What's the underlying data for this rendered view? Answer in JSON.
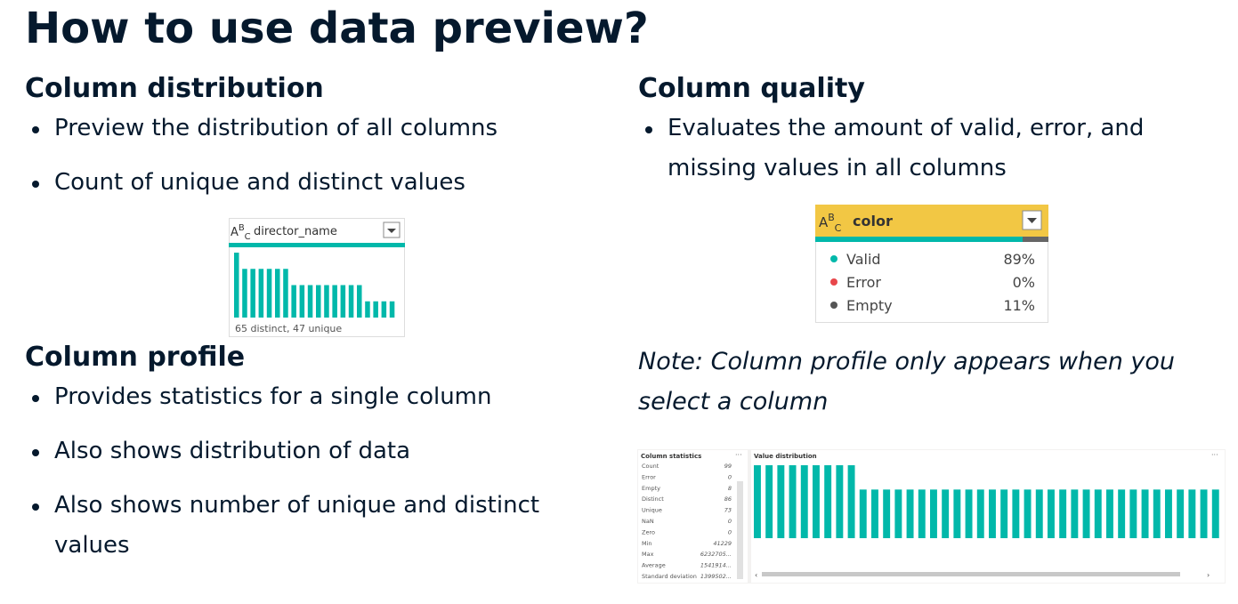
{
  "title": "How to use data preview?",
  "column_distribution": {
    "heading": "Column distribution",
    "bullets": [
      "Preview the distribution of all columns",
      "Count of unique and distinct values"
    ],
    "widget": {
      "column": "director_name",
      "bars": [
        4,
        3,
        3,
        3,
        3,
        3,
        3,
        2,
        2,
        2,
        2,
        2,
        2,
        2,
        2,
        2,
        1,
        1,
        1,
        1
      ],
      "footer": "65 distinct, 47 unique"
    }
  },
  "column_quality": {
    "heading": "Column quality",
    "bullets": [
      "Evaluates the amount of valid, error, and missing values in all columns"
    ],
    "widget": {
      "column": "color",
      "rows": [
        {
          "label": "Valid",
          "value": "89%"
        },
        {
          "label": "Error",
          "value": "0%"
        },
        {
          "label": "Empty",
          "value": "11%"
        }
      ]
    }
  },
  "column_profile": {
    "heading": "Column profile",
    "bullets": [
      "Provides statistics for a single column",
      "Also shows distribution of data",
      "Also shows number of unique and distinct values"
    ]
  },
  "note": "Note: Column profile only appears when you select a column",
  "profile_widget": {
    "stats_title": "Column statistics",
    "dist_title": "Value distribution",
    "stats": [
      {
        "label": "Count",
        "value": "99"
      },
      {
        "label": "Error",
        "value": "0"
      },
      {
        "label": "Empty",
        "value": "8"
      },
      {
        "label": "Distinct",
        "value": "86"
      },
      {
        "label": "Unique",
        "value": "73"
      },
      {
        "label": "NaN",
        "value": "0"
      },
      {
        "label": "Zero",
        "value": "0"
      },
      {
        "label": "Min",
        "value": "41229"
      },
      {
        "label": "Max",
        "value": "6232705..."
      },
      {
        "label": "Average",
        "value": "1541914..."
      },
      {
        "label": "Standard deviation",
        "value": "1399502..."
      }
    ],
    "bars": [
      3,
      3,
      3,
      3,
      3,
      3,
      3,
      3,
      3,
      2,
      2,
      2,
      2,
      2,
      2,
      2,
      2,
      2,
      2,
      2,
      2,
      2,
      2,
      2,
      2,
      2,
      2,
      2,
      2,
      2,
      2,
      2,
      2,
      2,
      2,
      2,
      2,
      2,
      2,
      2
    ]
  }
}
